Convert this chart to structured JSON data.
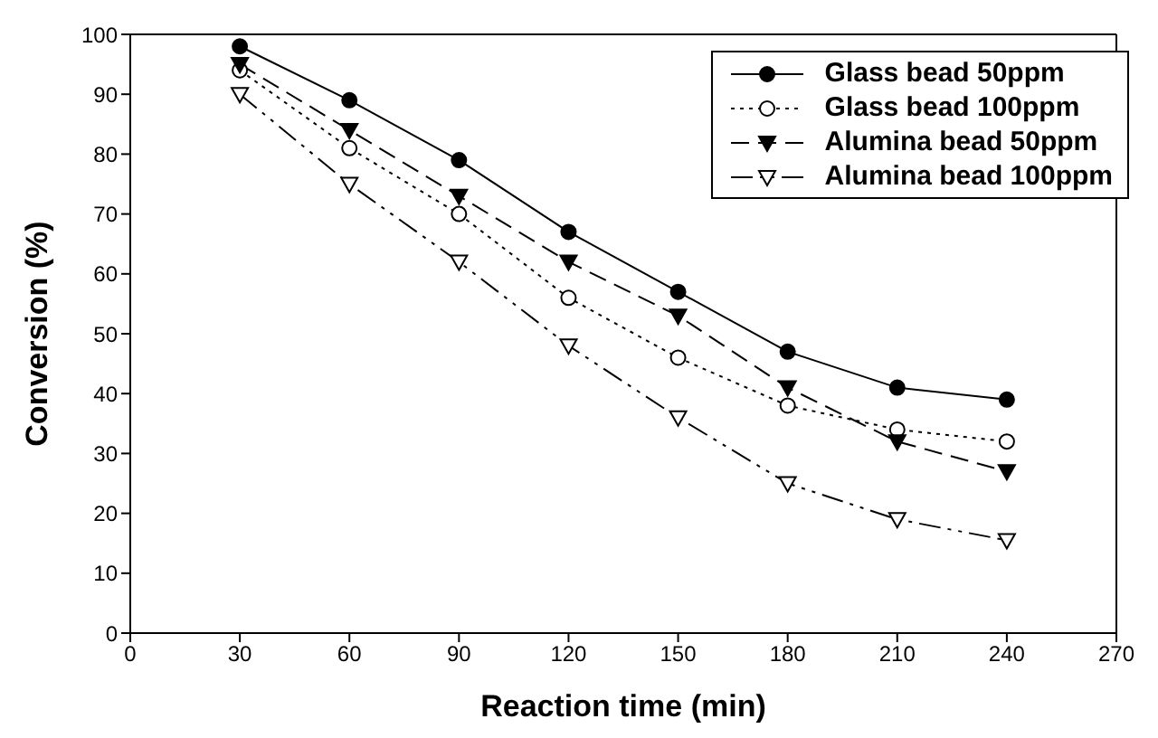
{
  "chart_data": {
    "type": "line",
    "xlabel": "Reaction time (min)",
    "ylabel": "Conversion (%)",
    "x": [
      30,
      60,
      90,
      120,
      150,
      180,
      210,
      240
    ],
    "xlim": [
      0,
      270
    ],
    "xticks": [
      0,
      30,
      60,
      90,
      120,
      150,
      180,
      210,
      240,
      270
    ],
    "ylim": [
      0,
      100
    ],
    "yticks": [
      0,
      10,
      20,
      30,
      40,
      50,
      60,
      70,
      80,
      90,
      100
    ],
    "grid": false,
    "legend": "top right",
    "series": [
      {
        "name": "Glass bead 50ppm",
        "color": "#000000",
        "marker": "circle",
        "line_style": "solid",
        "values": [
          98,
          89,
          79,
          67,
          57,
          47,
          41,
          39
        ]
      },
      {
        "name": "Glass bead 100ppm",
        "color": "#000000",
        "marker": "circle-open",
        "line_style": "dotted",
        "values": [
          94,
          81,
          70,
          56,
          46,
          38,
          34,
          32
        ]
      },
      {
        "name": "Alumina bead 50ppm",
        "color": "#000000",
        "marker": "triangle",
        "line_style": "dashed",
        "values": [
          95,
          84,
          73,
          62,
          53,
          41,
          32,
          27
        ]
      },
      {
        "name": "Alumina bead 100ppm",
        "color": "#000000",
        "marker": "triangle-open",
        "line_style": "dashdot",
        "values": [
          90,
          75,
          62,
          48,
          36,
          25,
          19,
          15.5
        ]
      }
    ]
  }
}
